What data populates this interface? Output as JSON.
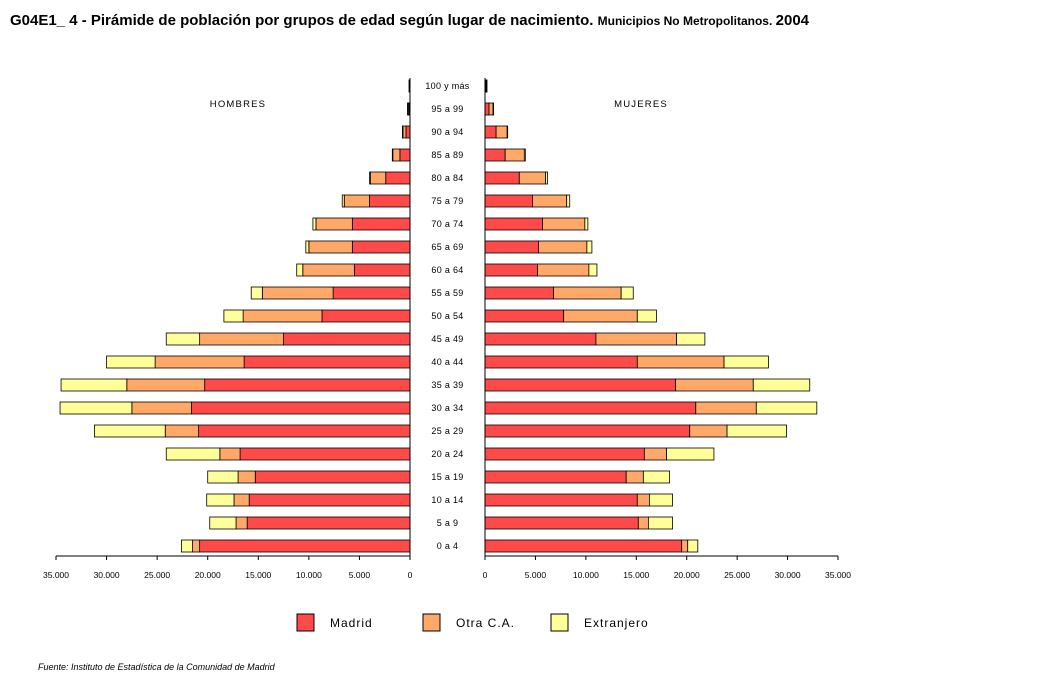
{
  "title": "G04E1_ 4 - Pirámide de población por grupos de edad según lugar de nacimiento.",
  "subtitle": "Municipios No Metropolitanos",
  "year": "2004",
  "source": "Fuente: Instituto de Estadística de la Comunidad de Madrid",
  "chart_data": {
    "type": "bar",
    "orientation": "horizontal-stacked-pyramid",
    "categories": [
      "0 a 4",
      "5 a 9",
      "10 a 14",
      "15 a 19",
      "20 a 24",
      "25 a 29",
      "30 a 34",
      "35 a 39",
      "40 a  44",
      "45 a 49",
      "50 a 54",
      "55 a 59",
      "60 a 64",
      "65 a 69",
      "70 a 74",
      "75 a 79",
      "80 a 84",
      "85 a 89",
      "90 a 94",
      "95 a 99",
      "100 y más"
    ],
    "panels": [
      {
        "label": "HOMBRES",
        "side": "left",
        "series": [
          {
            "name": "Madrid",
            "color": "#ff4a4a",
            "values": [
              20800,
              16100,
              15900,
              15300,
              16800,
              20900,
              21600,
              20300,
              16400,
              12500,
              8700,
              7600,
              5500,
              5700,
              5700,
              4000,
              2400,
              1000,
              400,
              100,
              50
            ]
          },
          {
            "name": "Otra C.A.",
            "color": "#ffa868",
            "values": [
              700,
              1100,
              1500,
              1700,
              2000,
              3300,
              5900,
              7700,
              8800,
              8300,
              7800,
              7000,
              5100,
              4300,
              3600,
              2500,
              1500,
              700,
              300,
              100,
              0
            ]
          },
          {
            "name": "Extranjero",
            "color": "#ffff99",
            "values": [
              1100,
              2600,
              2700,
              3000,
              5300,
              7000,
              7100,
              6500,
              4800,
              3300,
              1900,
              1100,
              600,
              300,
              300,
              200,
              100,
              50,
              50,
              50,
              50
            ]
          }
        ]
      },
      {
        "label": "MUJERES",
        "side": "right",
        "series": [
          {
            "name": "Madrid",
            "color": "#ff4a4a",
            "values": [
              19500,
              15200,
              15100,
              14000,
              15800,
              20300,
              20900,
              18900,
              15100,
              11000,
              7800,
              6800,
              5200,
              5300,
              5700,
              4700,
              3400,
              2000,
              1100,
              400,
              100
            ]
          },
          {
            "name": "Otra C.A.",
            "color": "#ffa868",
            "values": [
              600,
              1000,
              1200,
              1700,
              2200,
              3700,
              6000,
              7700,
              8600,
              8000,
              7300,
              6700,
              5100,
              4800,
              4200,
              3400,
              2600,
              1900,
              1100,
              400,
              50
            ]
          },
          {
            "name": "Extranjero",
            "color": "#ffff99",
            "values": [
              1000,
              2400,
              2300,
              2600,
              4700,
              5900,
              6000,
              5600,
              4400,
              2800,
              1900,
              1200,
              800,
              500,
              300,
              300,
              200,
              100,
              50,
              50,
              50
            ]
          }
        ]
      }
    ],
    "xaxis_ticks": [
      "0",
      "5.000",
      "10.000",
      "15.000",
      "20.000",
      "25.000",
      "30.000",
      "35.000"
    ],
    "xlim": [
      0,
      35000
    ],
    "legend_position": "bottom",
    "grid": false
  }
}
